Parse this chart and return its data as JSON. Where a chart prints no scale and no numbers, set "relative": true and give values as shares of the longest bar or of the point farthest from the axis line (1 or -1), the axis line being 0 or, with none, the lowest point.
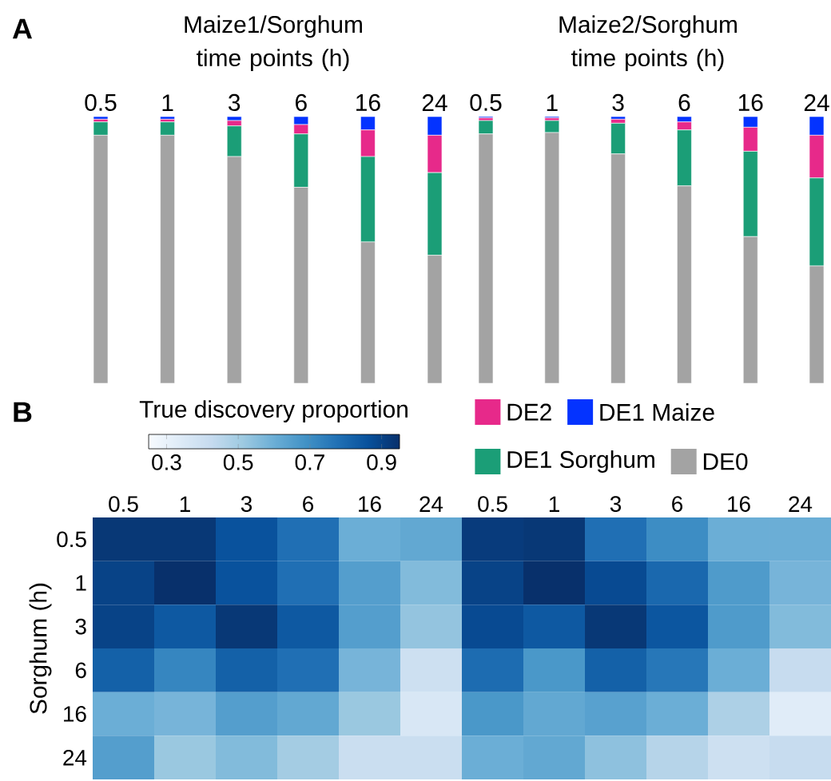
{
  "chart_data": [
    {
      "type": "bar",
      "title": "Maize1/Sorghum time points (h)",
      "categories": [
        "0.5",
        "1",
        "3",
        "6",
        "16",
        "24"
      ],
      "stacked": true,
      "relative": true,
      "legend": "bottom",
      "annotations": [
        "A"
      ],
      "series": [
        {
          "name": "DE0",
          "color": "#a3a3a3",
          "values": [
            0.93,
            0.93,
            0.85,
            0.735,
            0.53,
            0.48
          ]
        },
        {
          "name": "DE1 Sorghum",
          "color": "#1b9e77",
          "values": [
            0.05,
            0.05,
            0.115,
            0.2,
            0.32,
            0.31
          ]
        },
        {
          "name": "DE2",
          "color": "#e7298a",
          "values": [
            0.01,
            0.01,
            0.02,
            0.035,
            0.1,
            0.14
          ]
        },
        {
          "name": "DE1 Maize",
          "color": "#0433ff",
          "values": [
            0.01,
            0.01,
            0.015,
            0.03,
            0.05,
            0.07
          ]
        }
      ]
    },
    {
      "type": "bar",
      "title": "Maize2/Sorghum time points (h)",
      "categories": [
        "0.5",
        "1",
        "3",
        "6",
        "16",
        "24"
      ],
      "stacked": true,
      "relative": true,
      "series": [
        {
          "color": "#a3a3a3",
          "values": [
            0.935,
            0.94,
            0.86,
            0.74,
            0.55,
            0.44
          ]
        },
        {
          "color": "#1b9e77",
          "values": [
            0.05,
            0.045,
            0.115,
            0.21,
            0.32,
            0.33
          ]
        },
        {
          "color": "#e7298a",
          "values": [
            0.01,
            0.01,
            0.015,
            0.03,
            0.09,
            0.16
          ]
        },
        {
          "color": "#0433ff",
          "values": [
            0.005,
            0.005,
            0.01,
            0.02,
            0.04,
            0.07
          ]
        }
      ]
    },
    {
      "type": "heatmap",
      "categories": [
        "0.5",
        "1",
        "3",
        "6",
        "16",
        "24",
        "0.5",
        "1",
        "3",
        "6",
        "16",
        "24"
      ],
      "y_categories": [
        "0.5",
        "1",
        "3",
        "6",
        "16",
        "24"
      ],
      "ylabel": "Sorghum (h)",
      "clabel": "True discovery proportion",
      "clim": [
        0.25,
        0.95
      ],
      "cticks": [
        0.3,
        0.5,
        0.7,
        0.9
      ],
      "annotations": [
        "B"
      ],
      "cells": [
        [
          0.93,
          0.93,
          0.86,
          0.78,
          0.6,
          0.62,
          0.92,
          0.93,
          0.78,
          0.7,
          0.6,
          0.6
        ],
        [
          0.9,
          0.95,
          0.86,
          0.78,
          0.65,
          0.56,
          0.9,
          0.95,
          0.88,
          0.8,
          0.66,
          0.58
        ],
        [
          0.9,
          0.84,
          0.93,
          0.84,
          0.65,
          0.53,
          0.88,
          0.84,
          0.93,
          0.85,
          0.66,
          0.56
        ],
        [
          0.82,
          0.72,
          0.82,
          0.78,
          0.58,
          0.4,
          0.79,
          0.67,
          0.82,
          0.76,
          0.6,
          0.42
        ],
        [
          0.6,
          0.58,
          0.65,
          0.62,
          0.52,
          0.36,
          0.67,
          0.62,
          0.64,
          0.6,
          0.48,
          0.33
        ],
        [
          0.65,
          0.52,
          0.56,
          0.5,
          0.41,
          0.41,
          0.6,
          0.62,
          0.54,
          0.46,
          0.4,
          0.42
        ]
      ]
    }
  ]
}
